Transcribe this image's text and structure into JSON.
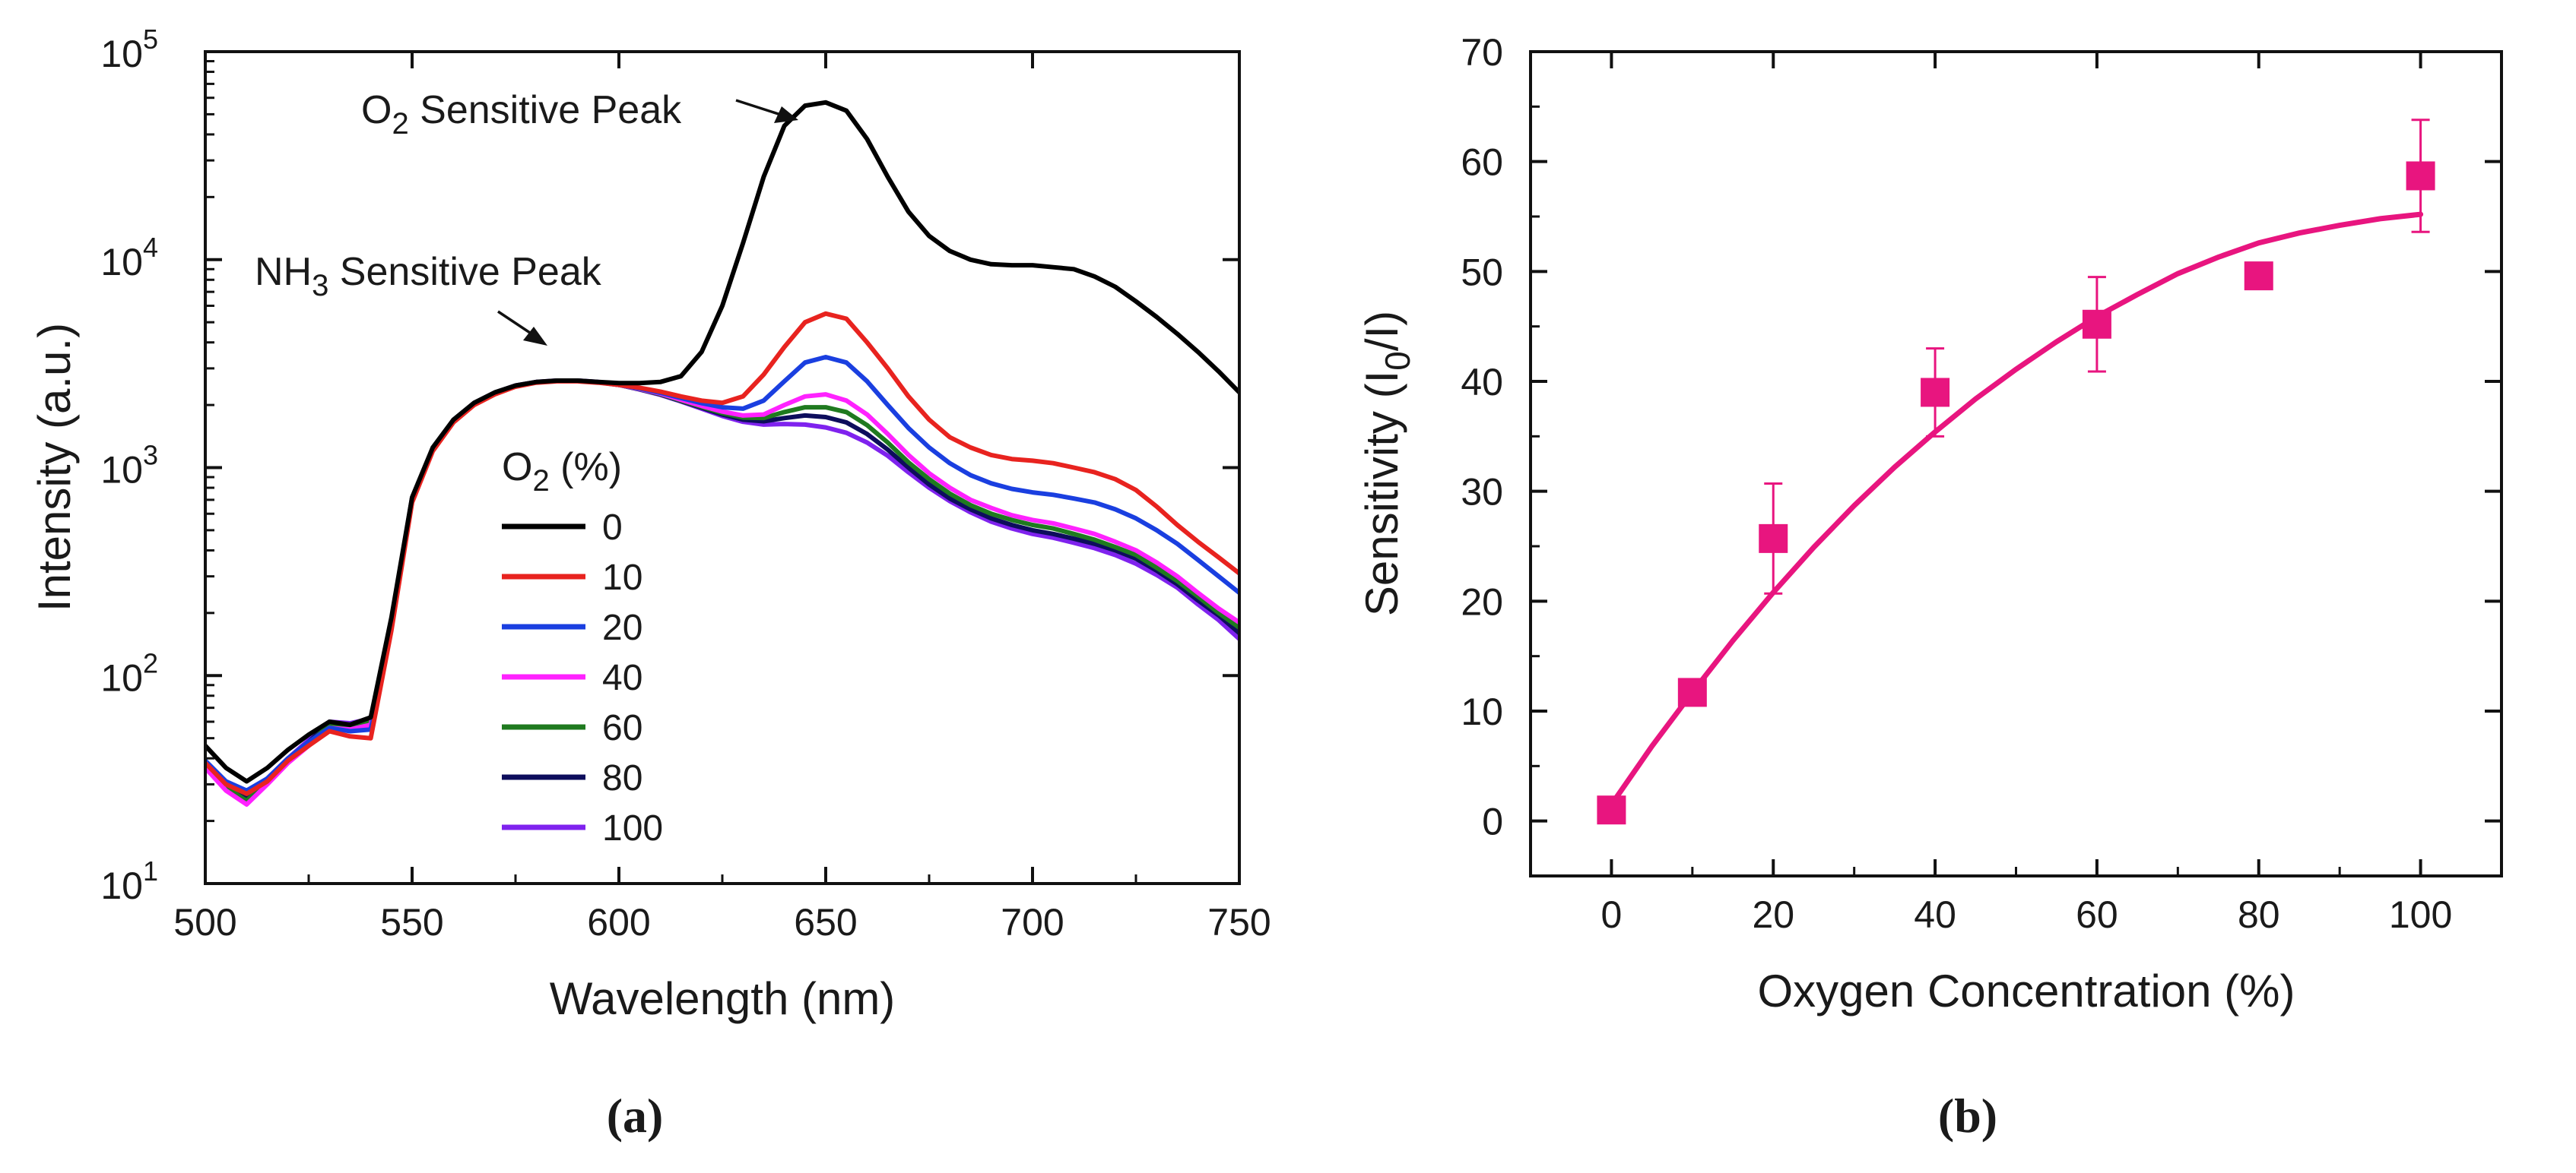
{
  "panel_labels": {
    "a": "(a)",
    "b": "(b)"
  },
  "chart_data": [
    {
      "type": "line",
      "panel": "a",
      "xlabel": "Wavelength (nm)",
      "ylabel": "Intensity (a.u.)",
      "xlim": [
        500,
        750
      ],
      "ylim": [
        10,
        100000
      ],
      "yscale": "log",
      "x_ticks": [
        500,
        550,
        600,
        650,
        700,
        750
      ],
      "y_ticks": [
        {
          "value": 10,
          "base": "10",
          "exp": "1"
        },
        {
          "value": 100,
          "base": "10",
          "exp": "2"
        },
        {
          "value": 1000,
          "base": "10",
          "exp": "3"
        },
        {
          "value": 10000,
          "base": "10",
          "exp": "4"
        },
        {
          "value": 100000,
          "base": "10",
          "exp": "5"
        }
      ],
      "legend": {
        "title_main": "O",
        "title_sub": "2",
        "title_rest": " (%)",
        "placement": "center"
      },
      "annotations": {
        "o2": {
          "main": "O",
          "sub": "2",
          "rest": " Sensitive Peak",
          "x": 651,
          "y": 57000
        },
        "nh3": {
          "main": "NH",
          "sub": "3",
          "rest": " Sensitive Peak",
          "x": 588,
          "y": 2700
        }
      },
      "x": [
        500,
        505,
        510,
        515,
        520,
        525,
        530,
        535,
        540,
        545,
        550,
        555,
        560,
        565,
        570,
        575,
        580,
        585,
        590,
        595,
        600,
        605,
        610,
        615,
        620,
        625,
        630,
        635,
        640,
        645,
        650,
        655,
        660,
        665,
        670,
        675,
        680,
        685,
        690,
        695,
        700,
        705,
        710,
        715,
        720,
        725,
        730,
        735,
        740,
        745,
        750
      ],
      "series": [
        {
          "name": "0",
          "color": "#000000",
          "values": [
            46,
            36,
            31,
            36,
            44,
            52,
            60,
            58,
            63,
            190,
            720,
            1250,
            1700,
            2050,
            2300,
            2480,
            2580,
            2620,
            2620,
            2580,
            2550,
            2550,
            2580,
            2750,
            3600,
            6000,
            12000,
            25000,
            44000,
            55000,
            57000,
            52000,
            38000,
            25000,
            17000,
            13000,
            11000,
            10000,
            9500,
            9400,
            9400,
            9200,
            9000,
            8300,
            7400,
            6300,
            5300,
            4400,
            3600,
            2900,
            2300
          ]
        },
        {
          "name": "10",
          "color": "#e8231f",
          "values": [
            38,
            30,
            27,
            31,
            39,
            46,
            54,
            51,
            50,
            165,
            680,
            1200,
            1650,
            2000,
            2250,
            2450,
            2560,
            2600,
            2600,
            2560,
            2500,
            2420,
            2320,
            2200,
            2100,
            2050,
            2200,
            2800,
            3800,
            5000,
            5500,
            5200,
            4000,
            3000,
            2200,
            1700,
            1400,
            1250,
            1150,
            1100,
            1080,
            1050,
            1000,
            950,
            880,
            780,
            650,
            530,
            440,
            370,
            310
          ]
        },
        {
          "name": "20",
          "color": "#1a3fe0",
          "values": [
            39,
            31,
            28,
            32,
            40,
            48,
            56,
            54,
            55,
            175,
            700,
            1220,
            1680,
            2030,
            2280,
            2470,
            2570,
            2610,
            2610,
            2570,
            2500,
            2400,
            2290,
            2160,
            2040,
            1950,
            1920,
            2100,
            2600,
            3200,
            3400,
            3200,
            2600,
            2000,
            1550,
            1250,
            1050,
            920,
            840,
            790,
            760,
            740,
            710,
            680,
            630,
            570,
            500,
            430,
            360,
            300,
            250
          ]
        },
        {
          "name": "40",
          "color": "#ff22ff",
          "values": [
            36,
            28,
            24,
            30,
            38,
            46,
            56,
            55,
            58,
            178,
            705,
            1225,
            1685,
            2035,
            2285,
            2472,
            2572,
            2612,
            2612,
            2572,
            2500,
            2390,
            2270,
            2120,
            1980,
            1860,
            1780,
            1800,
            2000,
            2200,
            2250,
            2100,
            1800,
            1450,
            1150,
            940,
            800,
            700,
            640,
            590,
            560,
            540,
            510,
            480,
            440,
            400,
            350,
            300,
            250,
            210,
            180
          ]
        },
        {
          "name": "60",
          "color": "#1f7a1f",
          "values": [
            37,
            29,
            25,
            31,
            39,
            47,
            58,
            57,
            60,
            180,
            710,
            1230,
            1690,
            2040,
            2290,
            2475,
            2575,
            2615,
            2615,
            2575,
            2500,
            2385,
            2260,
            2100,
            1960,
            1830,
            1740,
            1730,
            1850,
            1950,
            1950,
            1850,
            1600,
            1320,
            1060,
            880,
            750,
            660,
            600,
            560,
            530,
            510,
            480,
            450,
            415,
            380,
            330,
            285,
            240,
            200,
            170
          ]
        },
        {
          "name": "80",
          "color": "#0d0d5c",
          "values": [
            37,
            29,
            26,
            31,
            39,
            48,
            59,
            58,
            61,
            182,
            712,
            1232,
            1692,
            2042,
            2292,
            2477,
            2577,
            2617,
            2617,
            2577,
            2500,
            2380,
            2250,
            2090,
            1940,
            1800,
            1700,
            1670,
            1730,
            1780,
            1750,
            1650,
            1450,
            1220,
            1000,
            830,
            710,
            630,
            570,
            530,
            500,
            480,
            455,
            430,
            400,
            365,
            320,
            275,
            230,
            195,
            160
          ]
        },
        {
          "name": "100",
          "color": "#7f22ee",
          "values": [
            38,
            30,
            27,
            32,
            40,
            49,
            60,
            59,
            62,
            184,
            715,
            1235,
            1695,
            2045,
            2295,
            2480,
            2580,
            2620,
            2620,
            2580,
            2500,
            2375,
            2240,
            2080,
            1920,
            1770,
            1660,
            1610,
            1620,
            1610,
            1560,
            1470,
            1320,
            1140,
            950,
            800,
            690,
            610,
            550,
            510,
            480,
            460,
            435,
            410,
            380,
            345,
            305,
            265,
            220,
            185,
            150
          ]
        }
      ]
    },
    {
      "type": "scatter",
      "panel": "b",
      "xlabel": "Oxygen Concentration (%)",
      "ylabel_main": "Sensitivity (I",
      "ylabel_sub": "0",
      "ylabel_rest": "/I)",
      "xlim": [
        -10,
        110
      ],
      "ylim": [
        -5,
        70
      ],
      "x_ticks": [
        0,
        20,
        40,
        60,
        80,
        100
      ],
      "y_ticks": [
        0,
        10,
        20,
        30,
        40,
        50,
        60,
        70
      ],
      "color": "#e8157f",
      "points": [
        {
          "x": 0,
          "y": 1,
          "err": 0
        },
        {
          "x": 10,
          "y": 11.7,
          "err": 0
        },
        {
          "x": 20,
          "y": 25.7,
          "err": 5
        },
        {
          "x": 40,
          "y": 39,
          "err": 4
        },
        {
          "x": 60,
          "y": 45.2,
          "err": 4.3
        },
        {
          "x": 80,
          "y": 49.6,
          "err": 0
        },
        {
          "x": 100,
          "y": 58.7,
          "err": 5.1
        }
      ],
      "fit": {
        "x": [
          0,
          5,
          10,
          15,
          20,
          25,
          30,
          35,
          40,
          45,
          50,
          55,
          60,
          65,
          70,
          75,
          80,
          85,
          90,
          95,
          100
        ],
        "y": [
          1.5,
          6.8,
          11.7,
          16.4,
          20.8,
          24.9,
          28.7,
          32.2,
          35.4,
          38.4,
          41.1,
          43.6,
          45.9,
          47.9,
          49.8,
          51.3,
          52.6,
          53.5,
          54.2,
          54.8,
          55.2
        ]
      }
    }
  ]
}
